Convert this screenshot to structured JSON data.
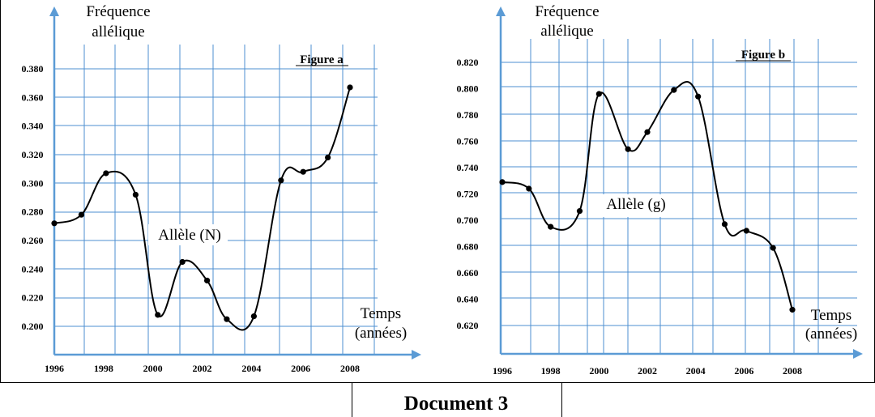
{
  "document_label": "Document 3",
  "chart_data": [
    {
      "type": "line",
      "title": "Figure a",
      "ylabel_lines": [
        "Fréquence",
        "allélique"
      ],
      "xlabel_lines": [
        "Temps",
        "(années)"
      ],
      "series": [
        {
          "name": "Allèle (N)",
          "x": [
            1996,
            1997.1,
            1998.1,
            1999.3,
            2000.2,
            2001.2,
            2002.2,
            2003,
            2004.1,
            2005.2,
            2006.1,
            2007.1,
            2008
          ],
          "values": [
            0.272,
            0.278,
            0.307,
            0.292,
            0.208,
            0.245,
            0.232,
            0.205,
            0.207,
            0.302,
            0.308,
            0.318,
            0.367
          ]
        }
      ],
      "x_ticks": [
        "1996",
        "1998",
        "2000",
        "2002",
        "2004",
        "2006",
        "2008"
      ],
      "y_ticks": [
        "0.200",
        "0.220",
        "0.240",
        "0.260",
        "0.280",
        "0.300",
        "0.320",
        "0.340",
        "0.360",
        "0.380"
      ],
      "xlim": [
        1996,
        2008
      ],
      "ylim": [
        0.2,
        0.38
      ],
      "grid": true
    },
    {
      "type": "line",
      "title": "Figure b",
      "ylabel_lines": [
        "Fréquence",
        "allélique"
      ],
      "xlabel_lines": [
        "Temps",
        "(années)"
      ],
      "series": [
        {
          "name": "Allèle (g)",
          "x": [
            1996,
            1997.1,
            1998,
            1999.2,
            2000,
            2001.2,
            2002,
            2003.1,
            2004.1,
            2005.2,
            2006.1,
            2007.2,
            2008
          ],
          "values": [
            0.729,
            0.724,
            0.695,
            0.707,
            0.796,
            0.754,
            0.767,
            0.799,
            0.794,
            0.697,
            0.692,
            0.679,
            0.632
          ]
        }
      ],
      "x_ticks": [
        "1996",
        "1998",
        "2000",
        "2002",
        "2004",
        "2006",
        "2008"
      ],
      "y_ticks": [
        "0.620",
        "0.640",
        "0.660",
        "0.680",
        "0.700",
        "0.720",
        "0.740",
        "0.760",
        "0.780",
        "0.800",
        "0.820"
      ],
      "xlim": [
        1996,
        2008
      ],
      "ylim": [
        0.62,
        0.82
      ],
      "grid": true
    }
  ]
}
